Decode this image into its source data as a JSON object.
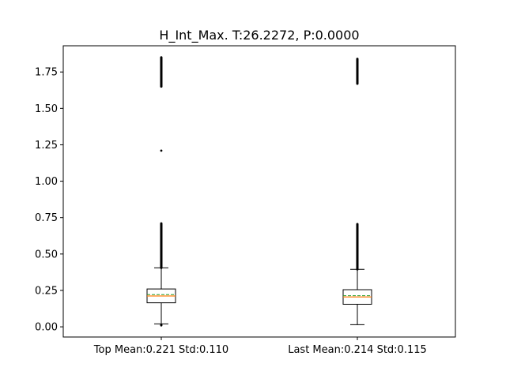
{
  "chart_data": {
    "type": "box",
    "title": "H_Int_Max. T:26.2272, P:0.0000",
    "xlabel": "",
    "ylabel": "",
    "ylim": [
      -0.07,
      1.93
    ],
    "yticks": [
      0.0,
      0.25,
      0.5,
      0.75,
      1.0,
      1.25,
      1.5,
      1.75
    ],
    "ytick_labels": [
      "0.00",
      "0.25",
      "0.50",
      "0.75",
      "1.00",
      "1.25",
      "1.50",
      "1.75"
    ],
    "categories": [
      "Top Mean:0.221 Std:0.110",
      "Last Mean:0.214 Std:0.115"
    ],
    "boxes": [
      {
        "whisker_low": 0.02,
        "q1": 0.165,
        "median": 0.212,
        "mean": 0.221,
        "q3": 0.26,
        "whisker_high": 0.405,
        "outliers_low": [
          0.01,
          0.015
        ],
        "outlier_ranges": [
          [
            0.405,
            0.71
          ],
          [
            1.65,
            1.85
          ]
        ],
        "outliers": [
          1.21
        ]
      },
      {
        "whisker_low": 0.015,
        "q1": 0.155,
        "median": 0.205,
        "mean": 0.214,
        "q3": 0.255,
        "whisker_high": 0.395,
        "outliers_low": [],
        "outlier_ranges": [
          [
            0.395,
            0.705
          ],
          [
            1.67,
            1.84
          ]
        ],
        "outliers": []
      }
    ],
    "colors": {
      "box": "#000000",
      "median": "#ff7f0e",
      "mean": "#2ca02c",
      "outlier": "#000000"
    },
    "grid": false,
    "legend": "none"
  }
}
